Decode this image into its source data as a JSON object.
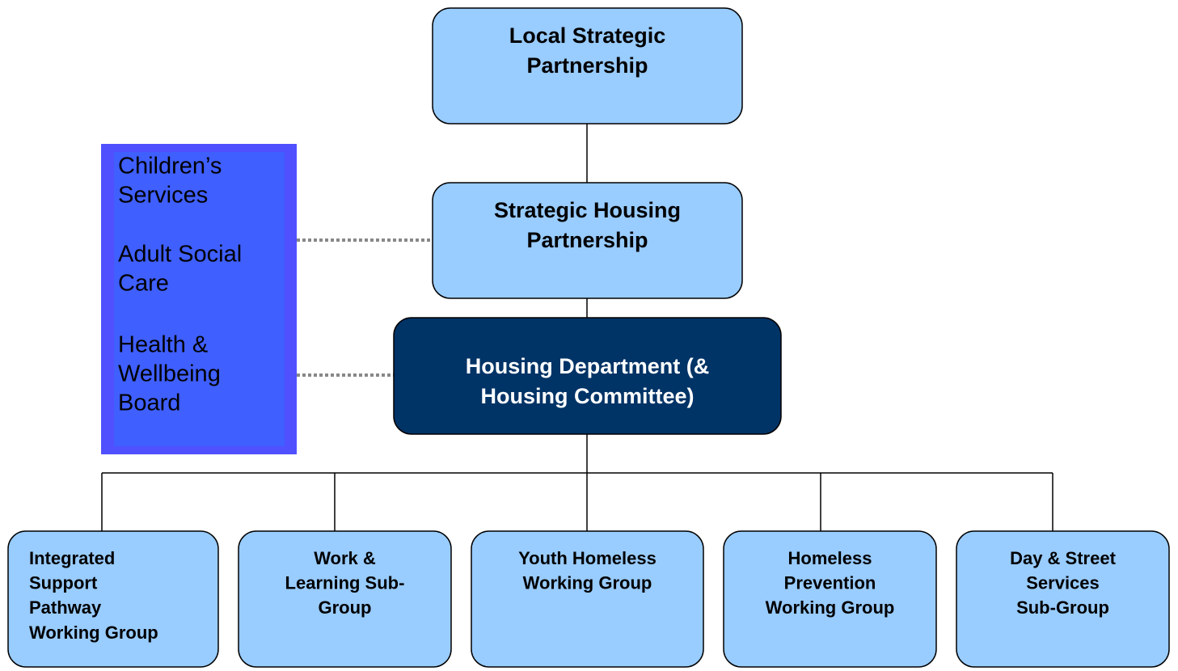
{
  "nodes": [
    {
      "lines": [
        "Local Strategic",
        "Partnership"
      ]
    },
    {
      "lines": [
        "Strategic Housing",
        "Partnership"
      ]
    },
    {
      "lines": [
        "Housing Department (&",
        "Housing Committee)"
      ]
    },
    {
      "lines": [
        "Integrated",
        "Support",
        "Pathway",
        "Working Group"
      ]
    },
    {
      "lines": [
        "Work &",
        "Learning Sub-",
        "Group"
      ]
    },
    {
      "lines": [
        "Youth Homeless",
        "Working Group"
      ]
    },
    {
      "lines": [
        "Homeless",
        "Prevention",
        "Working Group"
      ]
    },
    {
      "lines": [
        "Day & Street",
        "Services",
        "Sub-Group"
      ]
    }
  ],
  "side_box": {
    "items": [
      {
        "lines": [
          "Children’s",
          "Services"
        ]
      },
      {
        "lines": [
          "Adult Social",
          "Care"
        ]
      },
      {
        "lines": [
          "Health &",
          "Wellbeing",
          "Board"
        ]
      }
    ]
  }
}
